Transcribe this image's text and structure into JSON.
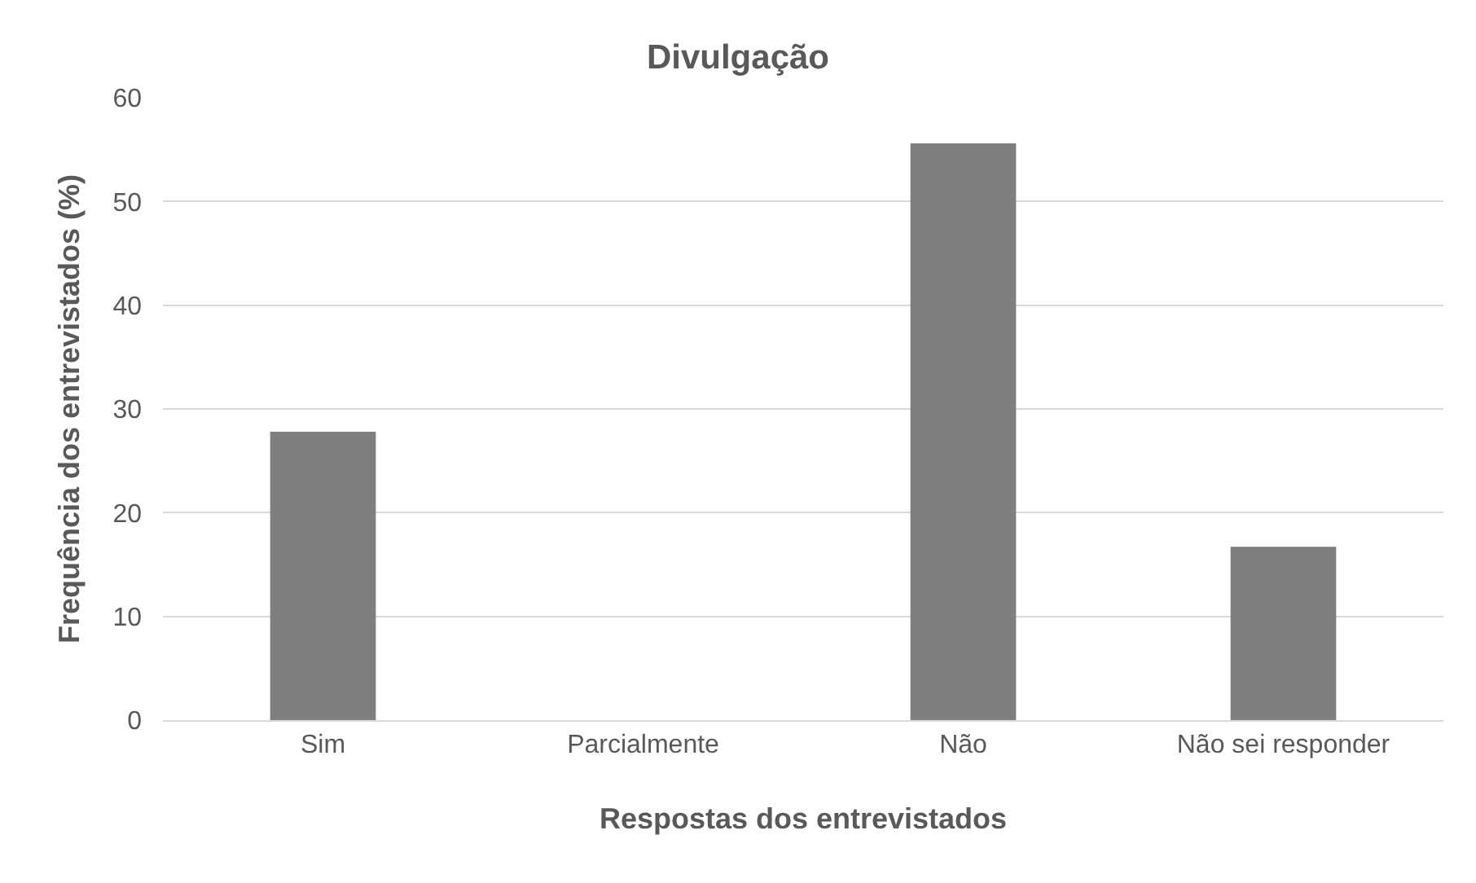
{
  "chart_data": {
    "type": "bar",
    "title": "Divulgação",
    "xlabel": "Respostas dos entrevistados",
    "ylabel": "Frequência dos entrevistados (%)",
    "categories": [
      "Sim",
      "Parcialmente",
      "Não",
      "Não sei responder"
    ],
    "values": [
      27.8,
      0,
      55.6,
      16.7
    ],
    "color": "#7f7f7f",
    "ylim": [
      0,
      60
    ],
    "yticks": [
      0,
      10,
      20,
      30,
      40,
      50,
      60
    ],
    "grid": "y"
  }
}
